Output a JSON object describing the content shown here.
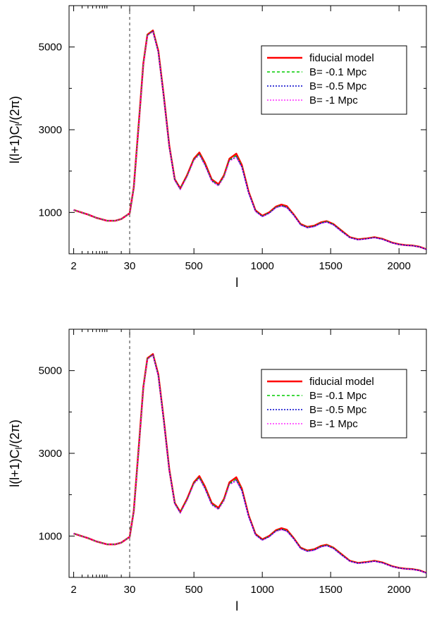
{
  "chart_data": [
    {
      "type": "line",
      "title": "",
      "xlabel": "l",
      "ylabel": "l(l+1)C_l/(2π)",
      "x_scale": "log for l ≤ 30, linear for l > 30",
      "xlim": [
        1.6,
        2200
      ],
      "ylim": [
        0,
        6000
      ],
      "x_ticks": [
        2,
        30,
        500,
        1000,
        1500,
        2000
      ],
      "x_tick_labels": [
        "2",
        "30",
        "500",
        "1000",
        "1500",
        "2000"
      ],
      "y_ticks": [
        1000,
        3000,
        5000
      ],
      "y_tick_labels": [
        "1000",
        "3000",
        "5000"
      ],
      "vertical_marker": {
        "x": 30,
        "style": "dashed"
      },
      "grid": false,
      "legend_position": "top-right",
      "legend": [
        "fiducial model",
        "B= -0.1 Mpc",
        "B= -0.5 Mpc",
        "B= -1 Mpc"
      ],
      "x": [
        2,
        4,
        6,
        10,
        15,
        20,
        30,
        60,
        100,
        130,
        160,
        200,
        240,
        280,
        320,
        360,
        400,
        450,
        500,
        540,
        580,
        630,
        680,
        720,
        760,
        810,
        850,
        900,
        950,
        1000,
        1050,
        1100,
        1140,
        1180,
        1230,
        1280,
        1330,
        1380,
        1430,
        1470,
        1520,
        1580,
        1640,
        1700,
        1760,
        1820,
        1880,
        1950,
        2000,
        2050,
        2100,
        2150,
        2200
      ],
      "series": [
        {
          "name": "fiducial model",
          "color": "#ff0000",
          "style": "solid",
          "values": [
            1060,
            950,
            870,
            800,
            800,
            840,
            980,
            1600,
            3300,
            4600,
            5300,
            5400,
            4900,
            3800,
            2600,
            1800,
            1580,
            1900,
            2300,
            2450,
            2200,
            1800,
            1680,
            1900,
            2300,
            2420,
            2150,
            1500,
            1050,
            920,
            1000,
            1140,
            1190,
            1150,
            950,
            720,
            650,
            680,
            760,
            790,
            720,
            560,
            400,
            350,
            370,
            400,
            360,
            270,
            230,
            210,
            200,
            170,
            110
          ]
        },
        {
          "name": "B= -0.1 Mpc",
          "color": "#00cc00",
          "style": "dashed",
          "values": [
            1060,
            950,
            870,
            800,
            800,
            840,
            980,
            1590,
            3280,
            4590,
            5290,
            5390,
            4880,
            3780,
            2590,
            1790,
            1570,
            1880,
            2280,
            2420,
            2170,
            1780,
            1660,
            1880,
            2270,
            2380,
            2120,
            1480,
            1040,
            910,
            990,
            1130,
            1170,
            1130,
            940,
            710,
            640,
            670,
            750,
            780,
            710,
            550,
            395,
            345,
            365,
            395,
            355,
            265,
            228,
            208,
            198,
            168,
            108
          ]
        },
        {
          "name": "B= -0.5 Mpc",
          "color": "#0000cc",
          "style": "dotted",
          "values": [
            1060,
            950,
            870,
            800,
            800,
            840,
            980,
            1590,
            3270,
            4580,
            5280,
            5380,
            4870,
            3770,
            2580,
            1780,
            1560,
            1870,
            2270,
            2400,
            2150,
            1760,
            1650,
            1860,
            2250,
            2350,
            2100,
            1470,
            1030,
            900,
            980,
            1120,
            1160,
            1120,
            930,
            700,
            630,
            660,
            740,
            770,
            700,
            540,
            390,
            340,
            360,
            390,
            350,
            262,
            225,
            205,
            195,
            165,
            106
          ]
        },
        {
          "name": "B= -1 Mpc",
          "color": "#ff00ff",
          "style": "dotted",
          "values": [
            1060,
            950,
            870,
            800,
            800,
            840,
            980,
            1590,
            3260,
            4570,
            5270,
            5370,
            4860,
            3760,
            2570,
            1770,
            1550,
            1860,
            2260,
            2390,
            2140,
            1750,
            1640,
            1850,
            2240,
            2330,
            2090,
            1460,
            1020,
            895,
            975,
            1110,
            1150,
            1110,
            925,
            695,
            625,
            655,
            735,
            765,
            695,
            535,
            388,
            338,
            358,
            388,
            348,
            260,
            223,
            203,
            193,
            163,
            105
          ]
        }
      ]
    },
    {
      "type": "line",
      "title": "",
      "xlabel": "l",
      "ylabel": "l(l+1)C_l/(2π)",
      "x_scale": "log for l ≤ 30, linear for l > 30",
      "xlim": [
        1.6,
        2200
      ],
      "ylim": [
        0,
        6000
      ],
      "x_ticks": [
        2,
        30,
        500,
        1000,
        1500,
        2000
      ],
      "x_tick_labels": [
        "2",
        "30",
        "500",
        "1000",
        "1500",
        "2000"
      ],
      "y_ticks": [
        1000,
        3000,
        5000
      ],
      "y_tick_labels": [
        "1000",
        "3000",
        "5000"
      ],
      "vertical_marker": {
        "x": 30,
        "style": "dashed"
      },
      "grid": false,
      "legend_position": "top-right",
      "legend": [
        "fiducial model",
        "B= -0.1 Mpc",
        "B= -0.5 Mpc",
        "B= -1 Mpc"
      ],
      "x": [
        2,
        4,
        6,
        10,
        15,
        20,
        30,
        60,
        100,
        130,
        160,
        200,
        240,
        280,
        320,
        360,
        400,
        450,
        500,
        540,
        580,
        630,
        680,
        720,
        760,
        810,
        850,
        900,
        950,
        1000,
        1050,
        1100,
        1140,
        1180,
        1230,
        1280,
        1330,
        1380,
        1430,
        1470,
        1520,
        1580,
        1640,
        1700,
        1760,
        1820,
        1880,
        1950,
        2000,
        2050,
        2100,
        2150,
        2200
      ],
      "series": [
        {
          "name": "fiducial model",
          "color": "#ff0000",
          "style": "solid",
          "values": [
            1060,
            950,
            870,
            800,
            800,
            840,
            980,
            1600,
            3300,
            4600,
            5300,
            5400,
            4900,
            3800,
            2600,
            1800,
            1580,
            1900,
            2300,
            2450,
            2200,
            1800,
            1680,
            1900,
            2300,
            2420,
            2150,
            1500,
            1050,
            920,
            1000,
            1140,
            1190,
            1150,
            950,
            720,
            650,
            680,
            760,
            790,
            720,
            560,
            400,
            350,
            370,
            400,
            360,
            270,
            230,
            210,
            200,
            170,
            110
          ]
        },
        {
          "name": "B= -0.1 Mpc",
          "color": "#00cc00",
          "style": "dashed",
          "values": [
            1060,
            950,
            870,
            800,
            800,
            840,
            980,
            1590,
            3280,
            4590,
            5290,
            5390,
            4880,
            3780,
            2590,
            1790,
            1570,
            1880,
            2280,
            2420,
            2170,
            1780,
            1660,
            1880,
            2270,
            2380,
            2120,
            1480,
            1040,
            910,
            990,
            1130,
            1170,
            1130,
            940,
            710,
            640,
            670,
            750,
            780,
            710,
            550,
            395,
            345,
            365,
            395,
            355,
            265,
            228,
            208,
            198,
            168,
            108
          ]
        },
        {
          "name": "B= -0.5 Mpc",
          "color": "#0000cc",
          "style": "dotted",
          "values": [
            1060,
            950,
            870,
            800,
            800,
            840,
            980,
            1590,
            3270,
            4580,
            5280,
            5380,
            4870,
            3770,
            2580,
            1780,
            1560,
            1870,
            2270,
            2400,
            2150,
            1760,
            1650,
            1860,
            2250,
            2350,
            2100,
            1470,
            1030,
            900,
            980,
            1120,
            1160,
            1120,
            930,
            700,
            630,
            660,
            740,
            770,
            700,
            540,
            390,
            340,
            360,
            390,
            350,
            262,
            225,
            205,
            195,
            165,
            106
          ]
        },
        {
          "name": "B= -1 Mpc",
          "color": "#ff00ff",
          "style": "dotted",
          "values": [
            1060,
            950,
            870,
            800,
            800,
            840,
            980,
            1590,
            3260,
            4570,
            5270,
            5370,
            4860,
            3760,
            2570,
            1770,
            1550,
            1860,
            2260,
            2390,
            2140,
            1750,
            1640,
            1850,
            2240,
            2330,
            2090,
            1460,
            1020,
            895,
            975,
            1110,
            1150,
            1110,
            925,
            695,
            625,
            655,
            735,
            765,
            695,
            535,
            388,
            338,
            358,
            388,
            348,
            260,
            223,
            203,
            193,
            163,
            105
          ]
        }
      ]
    }
  ]
}
